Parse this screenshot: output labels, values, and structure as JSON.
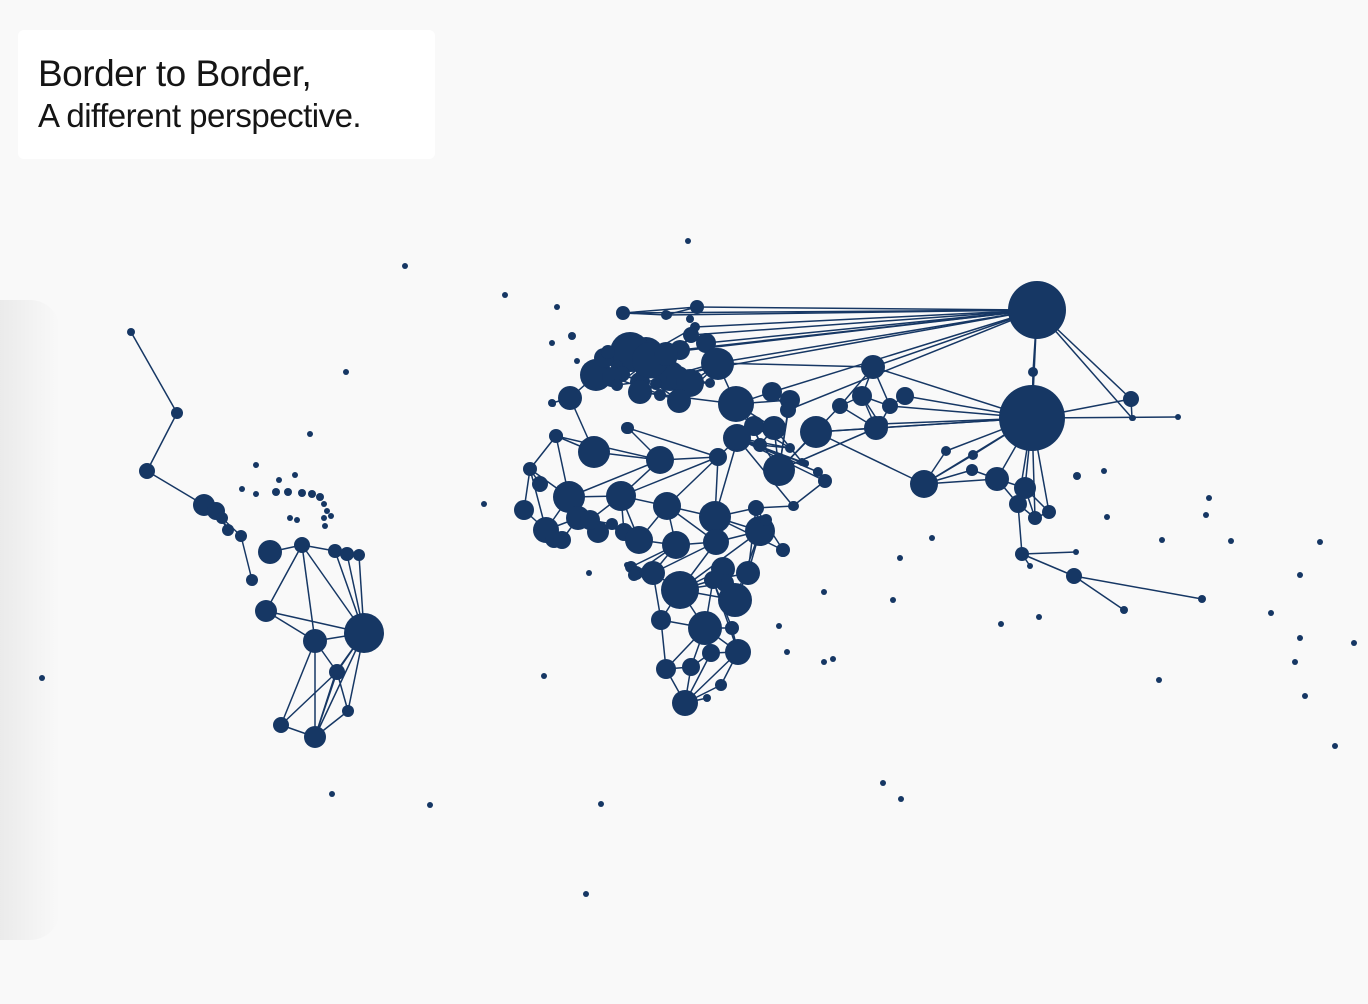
{
  "title": {
    "line1": "Border to Border,",
    "line2": "A different perspective."
  },
  "colors": {
    "background": "#f9f9f9",
    "node": "#163764",
    "edge": "#163764",
    "card": "#ffffff"
  }
}
